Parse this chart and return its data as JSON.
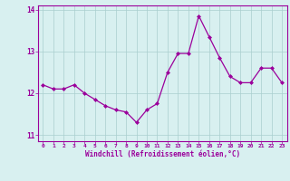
{
  "x": [
    0,
    1,
    2,
    3,
    4,
    5,
    6,
    7,
    8,
    9,
    10,
    11,
    12,
    13,
    14,
    15,
    16,
    17,
    18,
    19,
    20,
    21,
    22,
    23
  ],
  "y": [
    12.2,
    12.1,
    12.1,
    12.2,
    12.0,
    11.85,
    11.7,
    11.6,
    11.55,
    11.3,
    11.6,
    11.75,
    12.5,
    12.95,
    12.95,
    13.85,
    13.35,
    12.85,
    12.4,
    12.25,
    12.25,
    12.6,
    12.6,
    12.25
  ],
  "xlabel": "Windchill (Refroidissement éolien,°C)",
  "xlim": [
    -0.5,
    23.5
  ],
  "ylim": [
    10.85,
    14.1
  ],
  "yticks": [
    11,
    12,
    13,
    14
  ],
  "xticks": [
    0,
    1,
    2,
    3,
    4,
    5,
    6,
    7,
    8,
    9,
    10,
    11,
    12,
    13,
    14,
    15,
    16,
    17,
    18,
    19,
    20,
    21,
    22,
    23
  ],
  "line_color": "#9b009b",
  "marker": "D",
  "marker_size": 2.0,
  "bg_color": "#d8f0f0",
  "grid_color": "#aacece",
  "spine_color": "#9b009b",
  "tick_color": "#9b009b",
  "label_color": "#9b009b"
}
